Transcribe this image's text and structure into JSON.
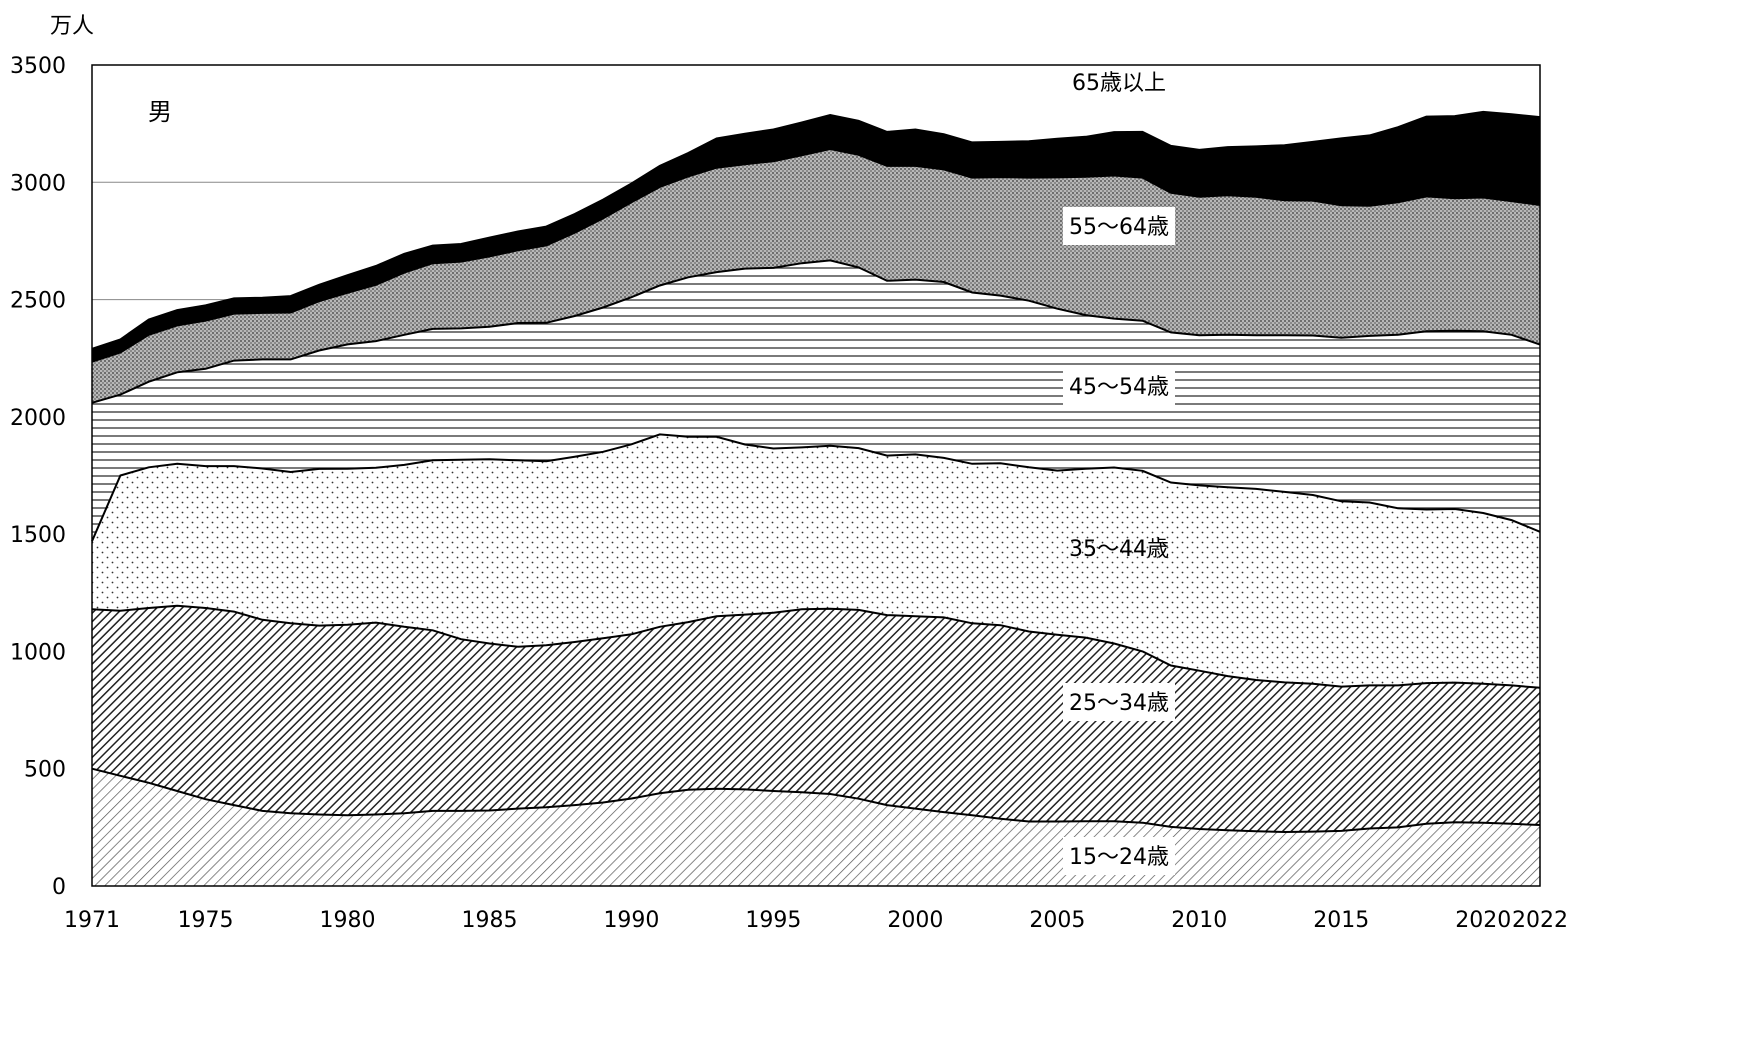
{
  "chart_data": {
    "type": "area",
    "stacked": true,
    "unit_label": "万人",
    "panel_label": "男",
    "ylim": [
      0,
      3500
    ],
    "yticks": [
      0,
      500,
      1000,
      1500,
      2000,
      2500,
      3000,
      3500
    ],
    "xlim": [
      1971,
      2022
    ],
    "xticks": [
      1971,
      1975,
      1980,
      1985,
      1990,
      1995,
      2000,
      2005,
      2010,
      2015,
      2020,
      2022
    ],
    "grid": "horizontal",
    "legend": "none (labels inside areas)",
    "years": [
      1971,
      1972,
      1973,
      1974,
      1975,
      1976,
      1977,
      1978,
      1979,
      1980,
      1981,
      1982,
      1983,
      1984,
      1985,
      1986,
      1987,
      1988,
      1989,
      1990,
      1991,
      1992,
      1993,
      1994,
      1995,
      1996,
      1997,
      1998,
      1999,
      2000,
      2001,
      2002,
      2003,
      2004,
      2005,
      2006,
      2007,
      2008,
      2009,
      2010,
      2011,
      2012,
      2013,
      2014,
      2015,
      2016,
      2017,
      2018,
      2019,
      2020,
      2021,
      2022
    ],
    "series": [
      {
        "name": "15～24歳",
        "pattern": "ltr-hatch",
        "values": [
          500,
          470,
          440,
          405,
          370,
          345,
          320,
          310,
          305,
          302,
          305,
          310,
          320,
          320,
          322,
          330,
          336,
          345,
          356,
          373,
          395,
          410,
          415,
          412,
          405,
          400,
          392,
          372,
          345,
          330,
          315,
          302,
          287,
          275,
          275,
          276,
          276,
          270,
          252,
          243,
          238,
          233,
          230,
          232,
          235,
          245,
          250,
          265,
          272,
          270,
          265,
          260
        ]
      },
      {
        "name": "25～34歳",
        "pattern": "diag-dense",
        "values": [
          680,
          703,
          745,
          790,
          815,
          825,
          815,
          810,
          805,
          812,
          818,
          795,
          770,
          732,
          712,
          690,
          690,
          695,
          700,
          700,
          710,
          715,
          735,
          745,
          760,
          780,
          790,
          805,
          810,
          820,
          830,
          818,
          825,
          810,
          796,
          783,
          758,
          730,
          688,
          675,
          657,
          645,
          638,
          630,
          615,
          610,
          605,
          600,
          595,
          592,
          590,
          585
        ]
      },
      {
        "name": "35～44歳",
        "pattern": "dots",
        "values": [
          290,
          577,
          600,
          605,
          605,
          620,
          645,
          645,
          668,
          665,
          660,
          690,
          725,
          765,
          785,
          795,
          785,
          790,
          795,
          810,
          820,
          790,
          765,
          725,
          700,
          690,
          695,
          690,
          680,
          690,
          680,
          680,
          690,
          700,
          700,
          720,
          750,
          770,
          780,
          790,
          805,
          815,
          812,
          805,
          790,
          780,
          755,
          740,
          740,
          728,
          705,
          665
        ]
      },
      {
        "name": "45～54歳",
        "pattern": "h-lines",
        "values": [
          590,
          345,
          365,
          390,
          415,
          450,
          465,
          480,
          505,
          530,
          540,
          555,
          560,
          560,
          565,
          585,
          590,
          600,
          615,
          627,
          635,
          680,
          702,
          750,
          770,
          785,
          790,
          770,
          745,
          745,
          750,
          730,
          715,
          710,
          690,
          655,
          635,
          640,
          640,
          640,
          650,
          655,
          668,
          680,
          697,
          710,
          740,
          760,
          760,
          775,
          790,
          798
        ]
      },
      {
        "name": "55～64歳",
        "pattern": "crosshatch",
        "values": [
          175,
          180,
          200,
          200,
          205,
          200,
          198,
          200,
          210,
          220,
          240,
          265,
          280,
          285,
          300,
          310,
          330,
          355,
          380,
          405,
          420,
          430,
          445,
          445,
          455,
          460,
          475,
          480,
          490,
          485,
          480,
          490,
          505,
          525,
          560,
          590,
          610,
          610,
          595,
          590,
          595,
          590,
          575,
          575,
          565,
          555,
          565,
          575,
          565,
          570,
          570,
          595
        ]
      },
      {
        "name": "65歳以上",
        "pattern": "solid",
        "values": [
          55,
          55,
          65,
          65,
          65,
          65,
          65,
          70,
          70,
          75,
          80,
          80,
          75,
          75,
          80,
          80,
          80,
          80,
          80,
          80,
          90,
          100,
          125,
          130,
          135,
          140,
          145,
          145,
          145,
          155,
          150,
          150,
          150,
          155,
          165,
          170,
          185,
          195,
          200,
          200,
          205,
          215,
          235,
          250,
          285,
          300,
          320,
          340,
          350,
          365,
          370,
          375
        ]
      }
    ]
  }
}
